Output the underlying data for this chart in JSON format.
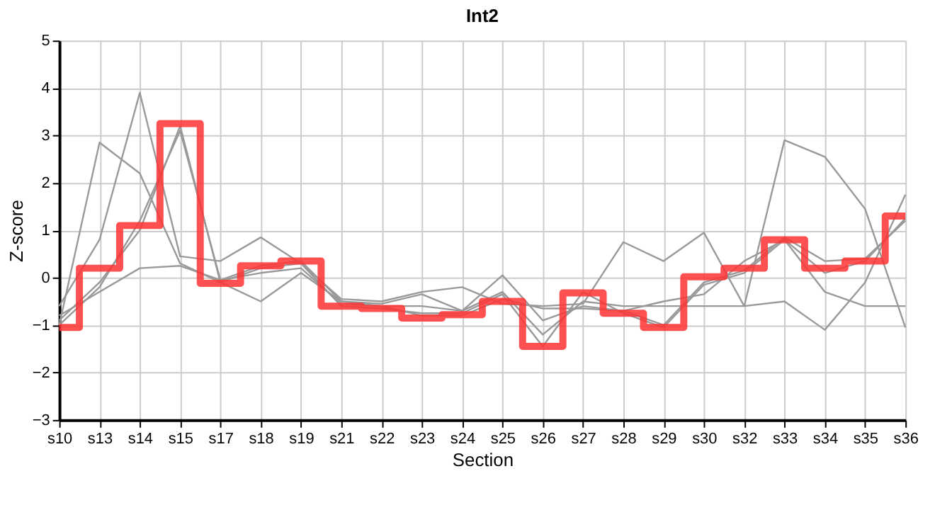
{
  "chart_data": {
    "type": "line",
    "title": "Int2",
    "xlabel": "Section",
    "ylabel": "Z-score",
    "categories": [
      "s10",
      "s13",
      "s14",
      "s15",
      "s17",
      "s18",
      "s19",
      "s21",
      "s22",
      "s23",
      "s24",
      "s25",
      "s26",
      "s27",
      "s28",
      "s29",
      "s30",
      "s32",
      "s33",
      "s34",
      "s35",
      "s36"
    ],
    "ylim": [
      -3,
      5
    ],
    "yticks": [
      -3,
      -2,
      -1,
      0,
      1,
      2,
      3,
      4,
      5
    ],
    "grid": true,
    "marker": "none",
    "line_style": "solid",
    "series": [
      {
        "color": "#999999",
        "values": [
          -0.6,
          0.8,
          3.9,
          0.45,
          0.35,
          0.85,
          0.3,
          -0.45,
          -0.5,
          -0.3,
          -0.2,
          -0.55,
          -0.6,
          -0.55,
          0.75,
          0.35,
          0.95,
          -0.6,
          -0.5,
          -1.1,
          -0.1,
          1.75
        ]
      },
      {
        "color": "#999999",
        "values": [
          -1.0,
          2.85,
          2.2,
          0.3,
          -0.1,
          -0.5,
          0.1,
          -0.5,
          -0.55,
          -0.35,
          -0.7,
          -0.3,
          -1.2,
          -0.5,
          -0.6,
          -0.6,
          -0.6,
          -0.6,
          2.9,
          2.55,
          1.45,
          -1.05
        ]
      },
      {
        "color": "#999999",
        "values": [
          -0.8,
          -0.3,
          0.2,
          0.25,
          -0.05,
          0.1,
          0.2,
          -0.55,
          -0.6,
          -0.6,
          -0.7,
          0.05,
          -0.9,
          -0.6,
          -0.7,
          -1.0,
          -0.1,
          0.15,
          0.85,
          0.35,
          0.4,
          1.2
        ]
      },
      {
        "color": "#999999",
        "values": [
          -0.9,
          -0.1,
          1.0,
          3.2,
          -0.1,
          0.2,
          0.3,
          -0.6,
          -0.65,
          -0.75,
          -0.75,
          -0.35,
          -1.45,
          -0.3,
          -0.75,
          -1.05,
          -0.15,
          0.1,
          0.8,
          0.1,
          0.35,
          1.25
        ]
      },
      {
        "color": "#999999",
        "values": [
          -1.0,
          -0.2,
          1.2,
          3.1,
          -0.05,
          0.25,
          0.35,
          -0.5,
          -0.6,
          -0.8,
          -0.8,
          -0.45,
          -0.65,
          -0.65,
          -0.7,
          -0.5,
          -0.35,
          0.35,
          0.8,
          -0.3,
          -0.6,
          -0.6
        ]
      },
      {
        "type": "step",
        "color": "#ff3333",
        "values": [
          -1.05,
          0.2,
          1.1,
          3.25,
          -0.12,
          0.25,
          0.35,
          -0.6,
          -0.65,
          -0.85,
          -0.78,
          -0.5,
          -1.45,
          -0.32,
          -0.75,
          -1.05,
          0.02,
          0.2,
          0.8,
          0.2,
          0.35,
          1.3
        ]
      }
    ]
  }
}
